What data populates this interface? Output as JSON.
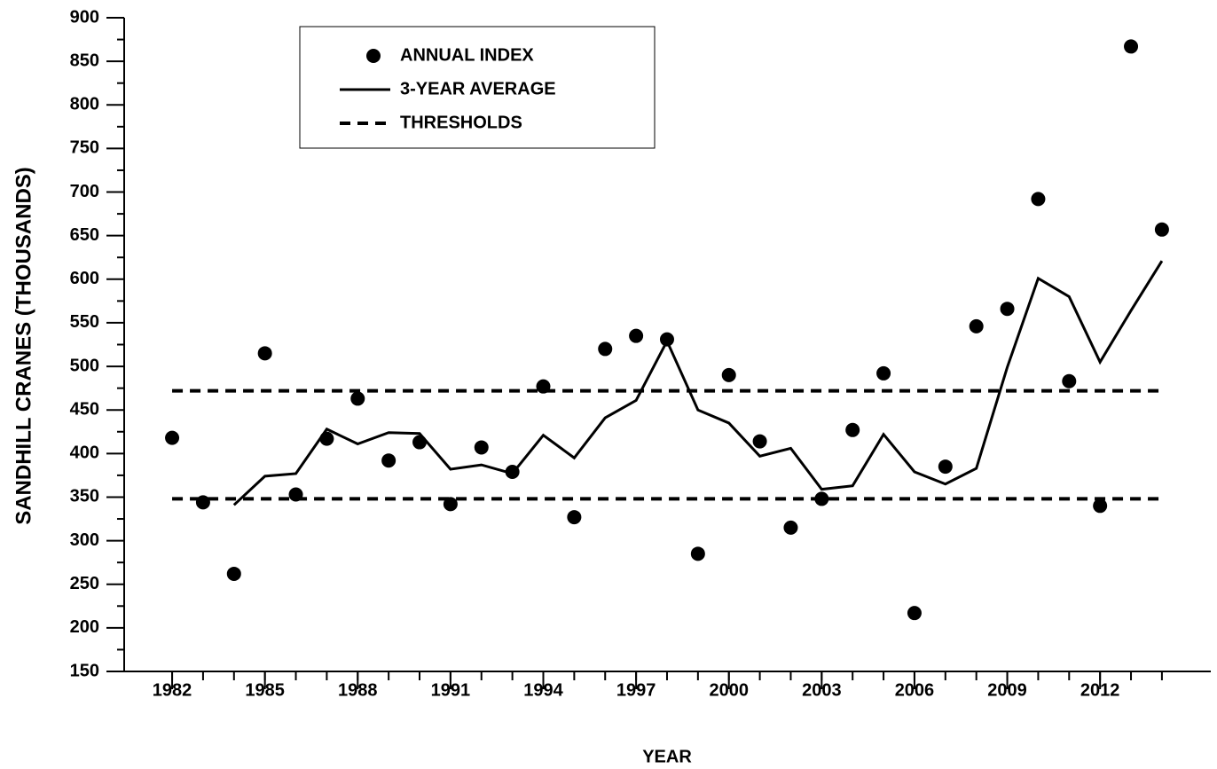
{
  "chart_data": {
    "type": "line",
    "x_label": "YEAR",
    "y_label": "SANDHILL CRANES (THOUSANDS)",
    "x": [
      1982,
      1983,
      1984,
      1985,
      1986,
      1987,
      1988,
      1989,
      1990,
      1991,
      1992,
      1993,
      1994,
      1995,
      1996,
      1997,
      1998,
      1999,
      2000,
      2001,
      2002,
      2003,
      2004,
      2005,
      2006,
      2007,
      2008,
      2009,
      2010,
      2011,
      2012,
      2013,
      2014
    ],
    "series": [
      {
        "name": "ANNUAL INDEX",
        "style": "markers",
        "color": "#000000",
        "values": [
          418,
          344,
          262,
          515,
          353,
          417,
          463,
          392,
          413,
          342,
          407,
          379,
          477,
          327,
          520,
          535,
          531,
          285,
          490,
          414,
          315,
          348,
          427,
          492,
          217,
          385,
          546,
          566,
          692,
          483,
          340,
          867,
          657
        ]
      },
      {
        "name": "3-YEAR AVERAGE",
        "style": "line",
        "color": "#000000",
        "values": [
          null,
          null,
          341,
          374,
          377,
          428,
          411,
          424,
          423,
          382,
          387,
          377,
          421,
          395,
          441,
          461,
          529,
          450,
          435,
          397,
          406,
          359,
          363,
          422,
          379,
          365,
          383,
          499,
          601,
          580,
          505,
          564,
          621
        ]
      }
    ],
    "thresholds": {
      "name": "THRESHOLDS",
      "color": "#000000",
      "values": [
        348,
        472
      ]
    },
    "xlim": [
      1980.45,
      2015.58
    ],
    "xticks": [
      1982,
      1985,
      1988,
      1991,
      1994,
      1997,
      2000,
      2003,
      2006,
      2009,
      2012
    ],
    "xminorticks": [
      1982,
      1983,
      1984,
      1985,
      1986,
      1987,
      1988,
      1989,
      1990,
      1991,
      1992,
      1993,
      1994,
      1995,
      1996,
      1997,
      1998,
      1999,
      2000,
      2001,
      2002,
      2003,
      2004,
      2005,
      2006,
      2007,
      2008,
      2009,
      2010,
      2011,
      2012,
      2013,
      2014
    ],
    "ylim": [
      150,
      900
    ],
    "yticks": [
      150,
      200,
      250,
      300,
      350,
      400,
      450,
      500,
      550,
      600,
      650,
      700,
      750,
      800,
      850,
      900
    ],
    "yminorticks": [
      175,
      225,
      275,
      325,
      375,
      425,
      475,
      525,
      575,
      625,
      675,
      725,
      775,
      825,
      875
    ],
    "legend": "upper left"
  }
}
